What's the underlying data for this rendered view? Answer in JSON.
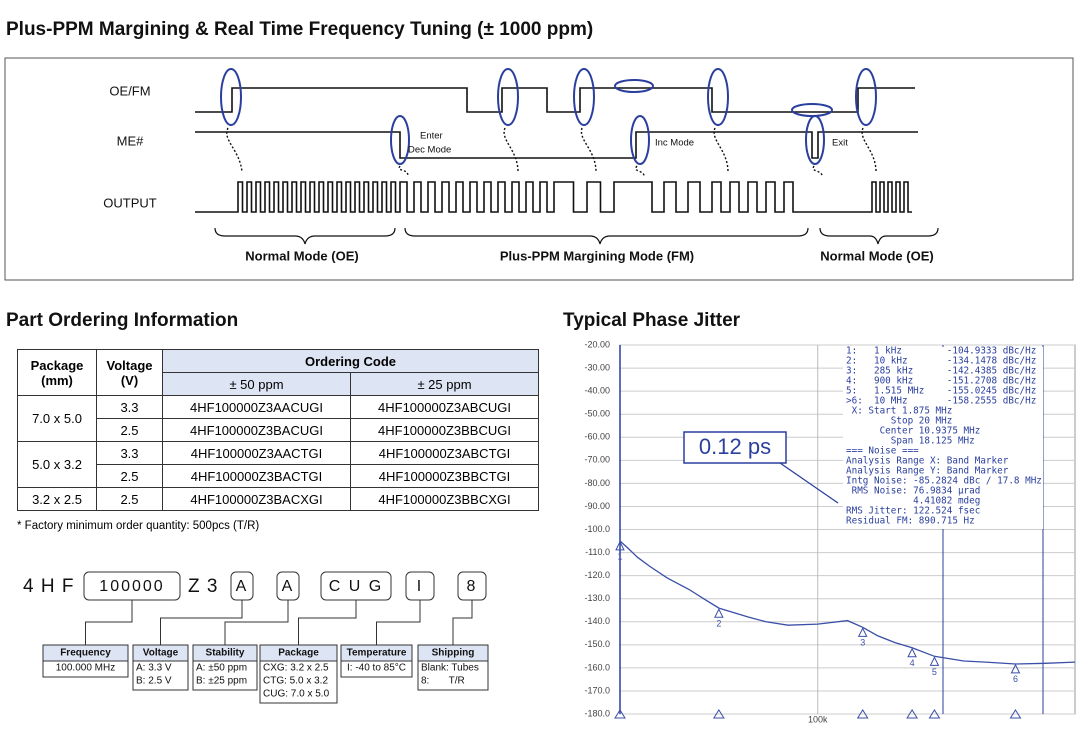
{
  "title": "Plus-PPM Margining & Real Time Frequency Tuning  (± 1000 ppm)",
  "timing": {
    "signals": [
      "OE/FM",
      "ME#",
      "OUTPUT"
    ],
    "annotations": [
      "Enter",
      "Dec Mode",
      "Inc Mode",
      "Exit"
    ],
    "modes": [
      "Normal Mode (OE)",
      "Plus-PPM Margining Mode (FM)",
      "Normal Mode (OE)"
    ]
  },
  "ordering": {
    "title": "Part Ordering Information",
    "headers": {
      "package": [
        "Package",
        "(mm)"
      ],
      "voltage": [
        "Voltage",
        "(V)"
      ],
      "code": "Ordering Code",
      "ppm50": "± 50 ppm",
      "ppm25": "± 25 ppm"
    },
    "groups": [
      {
        "package": "7.0 x 5.0",
        "rows": [
          [
            "3.3",
            "4HF100000Z3AACUGI",
            "4HF100000Z3ABCUGI"
          ],
          [
            "2.5",
            "4HF100000Z3BACUGI",
            "4HF100000Z3BBCUGI"
          ]
        ]
      },
      {
        "package": "5.0 x 3.2",
        "rows": [
          [
            "3.3",
            "4HF100000Z3AACTGI",
            "4HF100000Z3ABCTGI"
          ],
          [
            "2.5",
            "4HF100000Z3BACTGI",
            "4HF100000Z3BBCTGI"
          ]
        ]
      },
      {
        "package": "3.2 x 2.5",
        "rows": [
          [
            "2.5",
            "4HF100000Z3BACXGI",
            "4HF100000Z3BBCXGI"
          ]
        ]
      }
    ],
    "footnote": "*  Factory  minimum order quantity:  500pcs (T/R)"
  },
  "part_number": {
    "segments": [
      {
        "text": "4 H F",
        "boxed": false
      },
      {
        "text": "100000",
        "boxed": true
      },
      {
        "text": "Z 3",
        "boxed": false
      },
      {
        "text": "A",
        "boxed": true
      },
      {
        "text": "A",
        "boxed": true
      },
      {
        "text": "C U G",
        "boxed": true
      },
      {
        "text": "I",
        "boxed": true
      },
      {
        "text": "8",
        "boxed": true
      }
    ],
    "fields": [
      {
        "title": "Frequency",
        "lines": [
          "100.000 MHz"
        ]
      },
      {
        "title": "Voltage",
        "lines": [
          "A: 3.3 V",
          "B: 2.5 V"
        ]
      },
      {
        "title": "Stability",
        "lines": [
          "A: ±50 ppm",
          "B: ±25 ppm"
        ]
      },
      {
        "title": "Package",
        "lines": [
          "CXG: 3.2 x 2.5",
          "CTG: 5.0 x 3.2",
          "CUG: 7.0 x 5.0"
        ]
      },
      {
        "title": "Temperature",
        "lines": [
          "I: -40 to 85°C"
        ]
      },
      {
        "title": "Shipping",
        "lines": [
          "Blank: Tubes",
          "8:       T/R"
        ]
      }
    ]
  },
  "chart_data": {
    "type": "line",
    "title": "Typical Phase Jitter",
    "log_x": true,
    "grid": true,
    "color": "#3a4fa8",
    "x": [
      1000,
      1200,
      1500,
      2000,
      3000,
      5000,
      7000,
      10000,
      20000,
      30000,
      50000,
      100000,
      200000,
      285000,
      400000,
      600000,
      900000,
      1515000,
      3000000,
      5000000,
      10000000,
      20000000,
      40000000
    ],
    "values": [
      -105,
      -108,
      -112,
      -116,
      -121,
      -126,
      -130,
      -134.1,
      -138,
      -140,
      -141.5,
      -141,
      -139.5,
      -142.4,
      -146,
      -149,
      -151.3,
      -155,
      -157,
      -157.5,
      -158.3,
      -158,
      -157.5
    ],
    "xlim": [
      1000,
      40000000
    ],
    "xticks": [
      {
        "value": 100000,
        "label": "100k"
      }
    ],
    "ylim": [
      -20,
      -180
    ],
    "yticks": [
      {
        "value": -20,
        "label": "-20.00"
      },
      {
        "value": -30,
        "label": "-30.00"
      },
      {
        "value": -40,
        "label": "-40.00"
      },
      {
        "value": -50,
        "label": "-50.00"
      },
      {
        "value": -60,
        "label": "-60.00"
      },
      {
        "value": -70,
        "label": "-70.00"
      },
      {
        "value": -80,
        "label": "-80.00"
      },
      {
        "value": -90,
        "label": "-90.00"
      },
      {
        "value": -100,
        "label": "-100.0"
      },
      {
        "value": -110,
        "label": "-110.0"
      },
      {
        "value": -120,
        "label": "-120.0"
      },
      {
        "value": -130,
        "label": "-130.0"
      },
      {
        "value": -140,
        "label": "-140.0"
      },
      {
        "value": -150,
        "label": "-150.0"
      },
      {
        "value": -160,
        "label": "-160.0"
      },
      {
        "value": -170,
        "label": "-170.0"
      },
      {
        "value": -180,
        "label": "-180.0"
      }
    ],
    "annotation": "0.12 ps",
    "markers": [
      {
        "label": "1",
        "x": 1000,
        "y": -104.9333
      },
      {
        "label": "2",
        "x": 10000,
        "y": -134.1478
      },
      {
        "label": "3",
        "x": 285000,
        "y": -142.4385
      },
      {
        "label": "4",
        "x": 900000,
        "y": -151.2708
      },
      {
        "label": "5",
        "x": 1515000,
        "y": -155.0245
      },
      {
        "label": "6",
        "x": 10000000,
        "y": -158.2555
      }
    ],
    "readout": [
      "1:   1 kHz        -104.9333 dBc/Hz",
      "2:   10 kHz       -134.1478 dBc/Hz",
      "3:   285 kHz      -142.4385 dBc/Hz",
      "4:   900 kHz      -151.2708 dBc/Hz",
      "5:   1.515 MHz    -155.0245 dBc/Hz",
      ">6:  10 MHz       -158.2555 dBc/Hz",
      " X: Start 1.875 MHz",
      "        Stop 20 MHz",
      "      Center 10.9375 MHz",
      "        Span 18.125 MHz",
      "=== Noise ===",
      "Analysis Range X: Band Marker",
      "Analysis Range Y: Band Marker",
      "Intg Noise: -85.2824 dBc / 17.8 MHz",
      " RMS Noise: 76.9834 µrad",
      "            4.41082 mdeg",
      "RMS Jitter: 122.524 fsec",
      "Residual FM: 890.715 Hz"
    ]
  }
}
